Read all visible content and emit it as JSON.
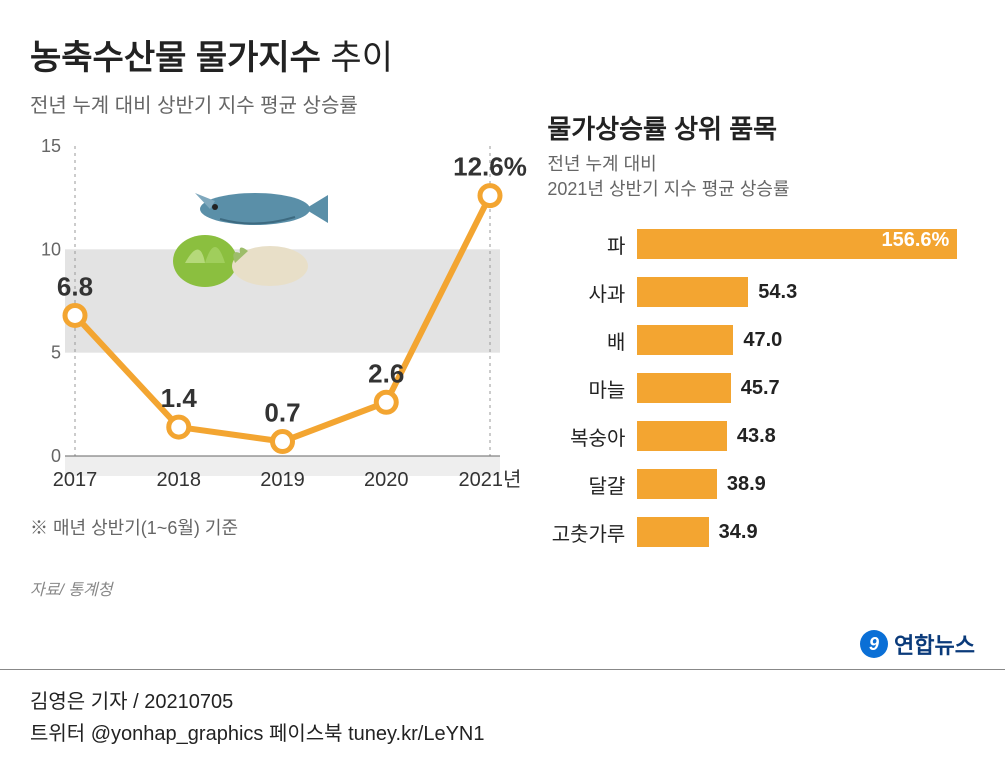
{
  "title_bold": "농축수산물 물가지수",
  "title_light": " 추이",
  "line_chart": {
    "subtitle": "전년 누계 대비 상반기 지수 평균 상승률",
    "note": "※ 매년 상반기(1~6월) 기준",
    "type": "line",
    "categories": [
      "2017",
      "2018",
      "2019",
      "2020",
      "2021년"
    ],
    "values": [
      6.8,
      1.4,
      0.7,
      2.6,
      12.6
    ],
    "value_labels": [
      "6.8",
      "1.4",
      "0.7",
      "2.6",
      "12.6%"
    ],
    "ylim": [
      0,
      15
    ],
    "yticks": [
      0,
      5,
      10,
      15
    ],
    "line_color": "#f3a531",
    "marker_fill": "#ffffff",
    "marker_stroke": "#f3a531",
    "marker_radius": 10,
    "line_width": 6,
    "grid_band_color": "#e3e3e3",
    "axis_color": "#666666",
    "label_color": "#333333",
    "tick_fontsize": 18,
    "value_fontsize": 26,
    "guide_dash_color": "#999999"
  },
  "bar_chart": {
    "title": "물가상승률 상위 품목",
    "subtitle_line1": "전년 누계 대비",
    "subtitle_line2": "2021년 상반기 지수 평균 상승률",
    "type": "bar-horizontal",
    "items": [
      {
        "label": "파",
        "value": 156.6,
        "display": "156.6%",
        "inside": true
      },
      {
        "label": "사과",
        "value": 54.3,
        "display": "54.3",
        "inside": false
      },
      {
        "label": "배",
        "value": 47.0,
        "display": "47.0",
        "inside": false
      },
      {
        "label": "마늘",
        "value": 45.7,
        "display": "45.7",
        "inside": false
      },
      {
        "label": "복숭아",
        "value": 43.8,
        "display": "43.8",
        "inside": false
      },
      {
        "label": "달걀",
        "value": 38.9,
        "display": "38.9",
        "inside": false
      },
      {
        "label": "고춧가루",
        "value": 34.9,
        "display": "34.9",
        "inside": false
      }
    ],
    "max_value": 156.6,
    "bar_color": "#f3a531",
    "label_fontsize": 20,
    "value_fontsize": 20
  },
  "source": "자료/ 통계청",
  "logo_text": "연합뉴스",
  "footer_line1": "김영은 기자 / 20210705",
  "footer_line2": "트위터 @yonhap_graphics  페이스북 tuney.kr/LeYN1",
  "colors": {
    "background": "#ffffff",
    "text": "#222222",
    "muted": "#666666"
  }
}
